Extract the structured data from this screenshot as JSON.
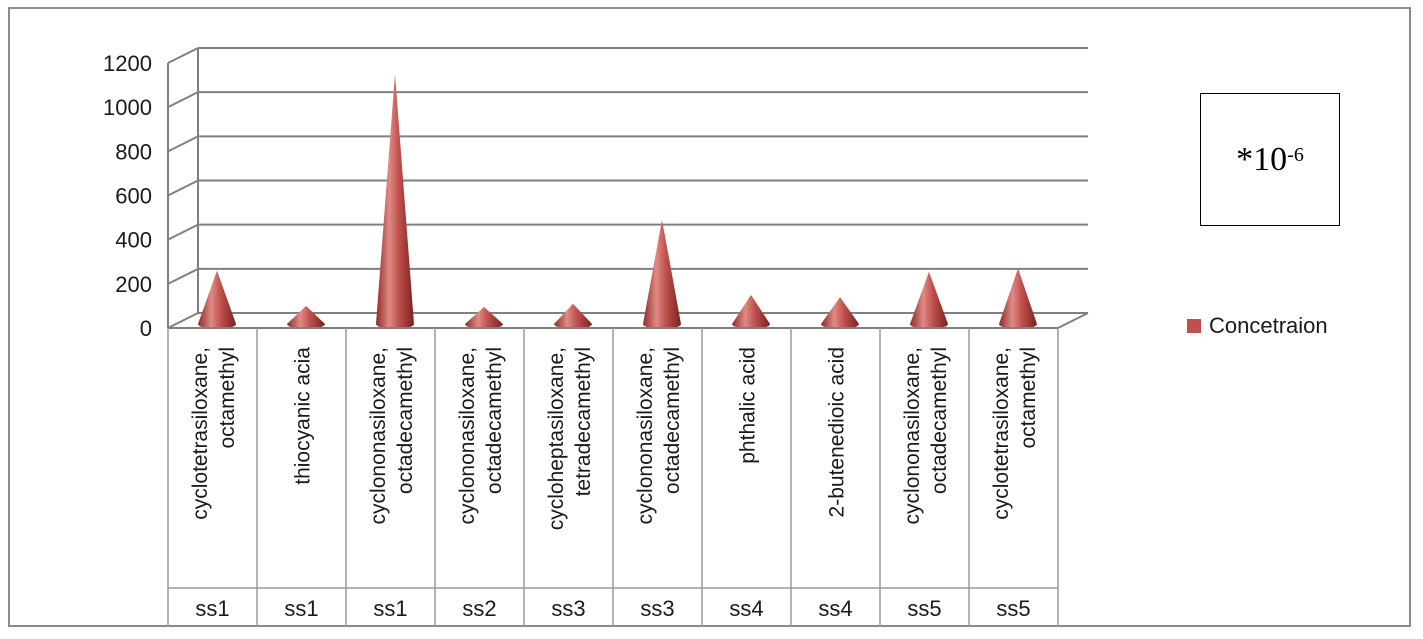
{
  "chart_data": {
    "type": "bar",
    "mark": "cone",
    "title": "",
    "xlabel": "",
    "ylabel": "",
    "ylim": [
      0,
      1200
    ],
    "yticks": [
      0,
      200,
      400,
      600,
      800,
      1000,
      1200
    ],
    "grid": true,
    "legend_position": "right",
    "categories": [
      {
        "line1": "cyclotetrasiloxane,",
        "line2": "octamethyl",
        "group": "ss1"
      },
      {
        "line1": "",
        "line2": "thiocyanic acia",
        "group": "ss1"
      },
      {
        "line1": "cyclononasiloxane,",
        "line2": "octadecamethyl",
        "group": "ss1"
      },
      {
        "line1": "cyclononasiloxane,",
        "line2": "octadecamethyl",
        "group": "ss2"
      },
      {
        "line1": "cycloheptasiloxane,",
        "line2": "tetradecamethyl",
        "group": "ss3"
      },
      {
        "line1": "cyclononasiloxane,",
        "line2": "octadecamethyl",
        "group": "ss3"
      },
      {
        "line1": "",
        "line2": "phthalic acid",
        "group": "ss4"
      },
      {
        "line1": "",
        "line2": "2-butenedioic acid",
        "group": "ss4"
      },
      {
        "line1": "cyclononasiloxane,",
        "line2": "octadecamethyl",
        "group": "ss5"
      },
      {
        "line1": "cyclotetrasiloxane,",
        "line2": "octamethyl",
        "group": "ss5"
      }
    ],
    "series": [
      {
        "name": "Concetraion",
        "color": "#c0504d",
        "values": [
          260,
          100,
          1150,
          95,
          110,
          490,
          150,
          140,
          255,
          270
        ]
      }
    ]
  },
  "annotation": {
    "base": "*10",
    "exponent": "-6"
  }
}
